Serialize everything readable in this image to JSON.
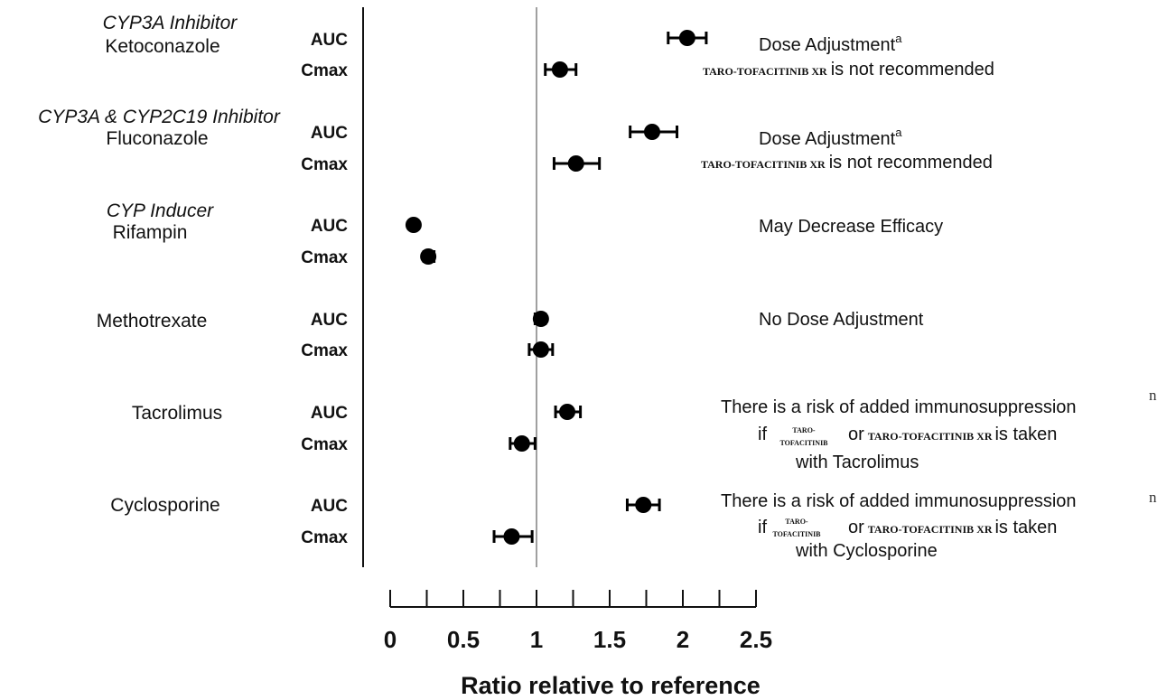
{
  "chart_data": {
    "type": "scatter",
    "xlabel": "Ratio relative to reference",
    "xlim": [
      0,
      2.5
    ],
    "ticks": [
      "0",
      "0.5",
      "1",
      "1.5",
      "2",
      "2.5"
    ],
    "tick_values": [
      0,
      0.5,
      1,
      1.5,
      2,
      2.5
    ],
    "reference_line": 1,
    "groups": [
      {
        "class": "CYP3A Inhibitor",
        "drug": "Ketoconazole",
        "points": [
          {
            "metric": "AUC",
            "ratio": 2.03,
            "lo": 1.9,
            "hi": 2.16
          },
          {
            "metric": "Cmax",
            "ratio": 1.16,
            "lo": 1.06,
            "hi": 1.27
          }
        ]
      },
      {
        "class": "CYP3A & CYP2C19 Inhibitor",
        "drug": "Fluconazole",
        "points": [
          {
            "metric": "AUC",
            "ratio": 1.79,
            "lo": 1.64,
            "hi": 1.96
          },
          {
            "metric": "Cmax",
            "ratio": 1.27,
            "lo": 1.12,
            "hi": 1.43
          }
        ]
      },
      {
        "class": "CYP Inducer",
        "drug": "Rifampin",
        "points": [
          {
            "metric": "AUC",
            "ratio": 0.16,
            "lo": 0.14,
            "hi": 0.18
          },
          {
            "metric": "Cmax",
            "ratio": 0.26,
            "lo": 0.23,
            "hi": 0.3
          }
        ]
      },
      {
        "class": "",
        "drug": "Methotrexate",
        "points": [
          {
            "metric": "AUC",
            "ratio": 1.03,
            "lo": 0.99,
            "hi": 1.06
          },
          {
            "metric": "Cmax",
            "ratio": 1.03,
            "lo": 0.95,
            "hi": 1.11
          }
        ]
      },
      {
        "class": "",
        "drug": "Tacrolimus",
        "points": [
          {
            "metric": "AUC",
            "ratio": 1.21,
            "lo": 1.13,
            "hi": 1.3
          },
          {
            "metric": "Cmax",
            "ratio": 0.9,
            "lo": 0.82,
            "hi": 0.99
          }
        ]
      },
      {
        "class": "",
        "drug": "Cyclosporine",
        "points": [
          {
            "metric": "AUC",
            "ratio": 1.73,
            "lo": 1.62,
            "hi": 1.84
          },
          {
            "metric": "Cmax",
            "ratio": 0.83,
            "lo": 0.71,
            "hi": 0.97
          }
        ]
      }
    ]
  },
  "recommendations": {
    "ketoconazole_line1": "Dose Adjustment",
    "ketoconazole_sup": "a",
    "ketoconazole_brand": "TARO-TOFACITINIB XR",
    "ketoconazole_line2": "is not recommended",
    "fluconazole_line1": "Dose Adjustment",
    "fluconazole_sup": "a",
    "fluconazole_brand": "TARO-TOFACITINIB XR",
    "fluconazole_line2": "is not recommended",
    "rifampin": "May Decrease Efficacy",
    "methotrexate": "No Dose Adjustment",
    "tacrolimus_line1": "There is a risk of added immunosuppression",
    "tacrolimus_if": "if",
    "tacrolimus_brand_a1": "TARO-",
    "tacrolimus_brand_a2": "TOFACITINIB",
    "tacrolimus_or": "or",
    "tacrolimus_brand_b": "TARO-TOFACITINIB XR",
    "tacrolimus_taken": "is taken",
    "tacrolimus_line3": "with Tacrolimus",
    "tacrolimus_fragment": "n",
    "cyclosporine_line1": "There is a risk of added immunosuppression",
    "cyclosporine_if": "if",
    "cyclosporine_brand_a1": "TARO-",
    "cyclosporine_brand_a2": "TOFACITINIB",
    "cyclosporine_or": "or",
    "cyclosporine_brand_b": "TARO-TOFACITINIB XR",
    "cyclosporine_taken": "is taken",
    "cyclosporine_line3": "with Cyclosporine",
    "cyclosporine_fragment": "n"
  },
  "colors": {
    "marker": "#000000",
    "reference_line": "#888888",
    "axis": "#111111"
  }
}
